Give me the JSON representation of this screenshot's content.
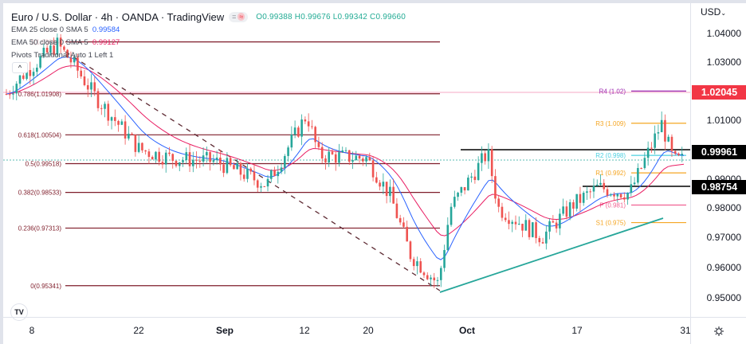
{
  "header": {
    "title": "Euro / U.S. Dollar · 4h · OANDA · TradingView",
    "ohlc": "O0.99388  H0.99676  L0.99342  C0.99660",
    "pill_left": "=",
    "pill_right": "≈"
  },
  "indicators": [
    {
      "label": "EMA 25 close 0 SMA 5",
      "value": "0.99584",
      "color": "#2962ff"
    },
    {
      "label": "EMA 50 close 0 SMA 5",
      "value": "0.99127",
      "color": "#e91e63"
    },
    {
      "label": "Pivots Traditional Auto 1 Left 1",
      "value": "",
      "color": "#434651"
    }
  ],
  "collapse_button": "^",
  "logo": "TV",
  "price_axis": {
    "currency": "USD",
    "ticks": [
      "1.04000",
      "1.03000",
      "1.01000",
      "0.99000",
      "0.98000",
      "0.97000",
      "0.96000",
      "0.95000"
    ],
    "tags": [
      {
        "value": "1.02045",
        "bg": "#f23645"
      },
      {
        "value": "0.99961",
        "bg": "#000000"
      },
      {
        "value": "0.98754",
        "bg": "#000000"
      }
    ]
  },
  "time_axis": {
    "labels": [
      {
        "text": "8",
        "bold": false
      },
      {
        "text": "22",
        "bold": false
      },
      {
        "text": "Sep",
        "bold": true
      },
      {
        "text": "12",
        "bold": false
      },
      {
        "text": "20",
        "bold": false
      },
      {
        "text": "Oct",
        "bold": true
      },
      {
        "text": "17",
        "bold": false
      },
      {
        "text": "31",
        "bold": false
      }
    ]
  },
  "fib_levels": [
    {
      "label": "1(1.03684)",
      "price": 1.03684
    },
    {
      "label": "0.786(1.01908)",
      "price": 1.01908
    },
    {
      "label": "0.618(1.00504)",
      "price": 1.00504
    },
    {
      "label": "0.5(0.99518)",
      "price": 0.99518
    },
    {
      "label": "0.382(0.98533)",
      "price": 0.98533
    },
    {
      "label": "0.236(0.97313)",
      "price": 0.97313
    },
    {
      "label": "0(0.95341)",
      "price": 0.95341
    }
  ],
  "pivots": [
    {
      "label": "R4 (1.02)",
      "price": 1.02,
      "color": "#9c27b0"
    },
    {
      "label": "R3 (1.009)",
      "price": 1.009,
      "color": "#f5a623"
    },
    {
      "label": "R2 (0.998)",
      "price": 0.998,
      "color": "#4dd0e1"
    },
    {
      "label": "R1 (0.992)",
      "price": 0.992,
      "color": "#f5a623"
    },
    {
      "label": "P (0.981)",
      "price": 0.981,
      "color": "#f06292"
    },
    {
      "label": "S1 (0.975)",
      "price": 0.975,
      "color": "#f5a623"
    }
  ],
  "colors": {
    "up": "#26a69a",
    "down": "#ef5350",
    "fib": "#7f1d2a",
    "trendline": "#26a69a",
    "resistance": "#000000",
    "ema25": "#2962ff",
    "ema50": "#e91e63"
  },
  "chart_data": {
    "type": "candlestick",
    "title": "Euro / U.S. Dollar · 4h · OANDA",
    "xlabel": "",
    "ylabel": "USD",
    "ylim": [
      0.945,
      1.047
    ],
    "x_ticks": [
      "8",
      "22",
      "Sep",
      "12",
      "20",
      "Oct",
      "17",
      "31"
    ],
    "y_ticks": [
      1.04,
      1.03,
      1.01,
      0.99,
      0.98,
      0.97,
      0.96,
      0.95
    ],
    "last_ohlc": {
      "open": 0.99388,
      "high": 0.99676,
      "low": 0.99342,
      "close": 0.9966
    },
    "ema25": 0.99584,
    "ema50": 0.99127,
    "horizontal_levels": [
      1.02045,
      0.99961,
      0.98754
    ],
    "approx_close_path": [
      {
        "x": "Aug 8",
        "y": 1.019
      },
      {
        "x": "Aug 10",
        "y": 1.026
      },
      {
        "x": "Aug 12",
        "y": 1.036
      },
      {
        "x": "Aug 15",
        "y": 1.03
      },
      {
        "x": "Aug 18",
        "y": 1.018
      },
      {
        "x": "Aug 22",
        "y": 1.0
      },
      {
        "x": "Aug 26",
        "y": 0.997
      },
      {
        "x": "Sep 1",
        "y": 0.996
      },
      {
        "x": "Sep 6",
        "y": 0.988
      },
      {
        "x": "Sep 12",
        "y": 1.012
      },
      {
        "x": "Sep 14",
        "y": 0.998
      },
      {
        "x": "Sep 20",
        "y": 0.997
      },
      {
        "x": "Sep 23",
        "y": 0.984
      },
      {
        "x": "Sep 26",
        "y": 0.964
      },
      {
        "x": "Sep 28",
        "y": 0.954
      },
      {
        "x": "Sep 30",
        "y": 0.98
      },
      {
        "x": "Oct 4",
        "y": 0.999
      },
      {
        "x": "Oct 6",
        "y": 0.98
      },
      {
        "x": "Oct 12",
        "y": 0.97
      },
      {
        "x": "Oct 17",
        "y": 0.981
      },
      {
        "x": "Oct 20",
        "y": 0.987
      },
      {
        "x": "Oct 24",
        "y": 0.985
      },
      {
        "x": "Oct 26",
        "y": 1.009
      },
      {
        "x": "Oct 28",
        "y": 0.996
      },
      {
        "x": "Oct 31",
        "y": 0.9966
      }
    ],
    "fibonacci": [
      {
        "ratio": 1,
        "price": 1.03684
      },
      {
        "ratio": 0.786,
        "price": 1.01908
      },
      {
        "ratio": 0.618,
        "price": 1.00504
      },
      {
        "ratio": 0.5,
        "price": 0.99518
      },
      {
        "ratio": 0.382,
        "price": 0.98533
      },
      {
        "ratio": 0.236,
        "price": 0.97313
      },
      {
        "ratio": 0,
        "price": 0.95341
      }
    ],
    "pivots": {
      "R4": 1.02,
      "R3": 1.009,
      "R2": 0.998,
      "R1": 0.992,
      "P": 0.981,
      "S1": 0.975
    },
    "ascending_trendline": [
      {
        "x": "Sep 28",
        "y": 0.9535
      },
      {
        "x": "Oct 31",
        "y": 0.976
      }
    ],
    "grid": false,
    "legend_position": "top-left"
  }
}
